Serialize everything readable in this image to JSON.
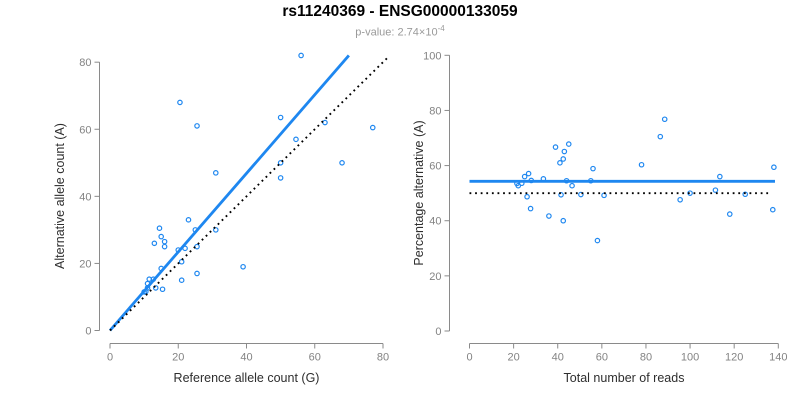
{
  "header": {
    "title": "rs11240369 - ENSG00000133059",
    "pvalue_prefix": "p-value: ",
    "pvalue_mantissa": "2.74×10",
    "pvalue_exponent": "-4"
  },
  "colors": {
    "accent_blue": "#1e87f0",
    "dotted_black": "#000000",
    "axis_gray": "#8a8a8a",
    "tick_label_gray": "#838383",
    "axis_title_color": "#2e2e2e",
    "subtitle_gray": "#9a9a9a"
  },
  "chart_data": [
    {
      "type": "scatter",
      "title": "",
      "xlabel": "Reference allele count (G)",
      "ylabel": "Alternative allele count (A)",
      "xlim": [
        0,
        80
      ],
      "ylim": [
        0,
        80
      ],
      "xticks": [
        0,
        20,
        40,
        60,
        80
      ],
      "yticks": [
        0,
        20,
        40,
        60,
        80
      ],
      "grid": false,
      "legend": "none",
      "points_meaning": "x = reference allele (G) read count, y = alternative allele (A) read count per sample",
      "points": [
        [
          56,
          82
        ],
        [
          20.5,
          68
        ],
        [
          25.5,
          61
        ],
        [
          50,
          63.5
        ],
        [
          63,
          62
        ],
        [
          77,
          60.5
        ],
        [
          54.5,
          57
        ],
        [
          50,
          50
        ],
        [
          68,
          50
        ],
        [
          31,
          47
        ],
        [
          50,
          45.5
        ],
        [
          23,
          33
        ],
        [
          14.5,
          30.5
        ],
        [
          15,
          28
        ],
        [
          13,
          26
        ],
        [
          16,
          26.5
        ],
        [
          16,
          25
        ],
        [
          25,
          30
        ],
        [
          22,
          24.5
        ],
        [
          20,
          24
        ],
        [
          25.5,
          25
        ],
        [
          31,
          30
        ],
        [
          21,
          20.5
        ],
        [
          39,
          19
        ],
        [
          25.5,
          17
        ],
        [
          21,
          15
        ],
        [
          15,
          18.5
        ],
        [
          11.5,
          15.3
        ],
        [
          12.7,
          15.3
        ],
        [
          11,
          12.7
        ],
        [
          13.4,
          12.7
        ],
        [
          15.4,
          12.3
        ],
        [
          10,
          11.5
        ],
        [
          10.5,
          11.6
        ],
        [
          11,
          14
        ]
      ],
      "lines": [
        {
          "name": "fitted-line",
          "style": "solid",
          "x1": 0,
          "y1": 0,
          "x2": 70,
          "y2": 82
        },
        {
          "name": "identity-line",
          "style": "dotted",
          "x1": 0,
          "y1": 0,
          "x2": 81.5,
          "y2": 81.5
        }
      ]
    },
    {
      "type": "scatter",
      "title": "",
      "xlabel": "Total number of reads",
      "ylabel": "Percentage alternative (A)",
      "xlim": [
        0,
        140
      ],
      "ylim": [
        0,
        100
      ],
      "xticks": [
        0,
        20,
        40,
        60,
        80,
        100,
        120,
        140
      ],
      "yticks": [
        0,
        20,
        40,
        60,
        80,
        100
      ],
      "grid": false,
      "legend": "none",
      "points_meaning": "x = total reads (G+A), y = percentage of alternative allele reads per sample",
      "points": [
        [
          138,
          59.4
        ],
        [
          88.5,
          76.8
        ],
        [
          86.5,
          70.5
        ],
        [
          113.5,
          56
        ],
        [
          125,
          49.6
        ],
        [
          137.5,
          44
        ],
        [
          111.5,
          51.1
        ],
        [
          100,
          50
        ],
        [
          118,
          42.4
        ],
        [
          78,
          60.3
        ],
        [
          95.5,
          47.6
        ],
        [
          56,
          58.9
        ],
        [
          45,
          67.8
        ],
        [
          43,
          65.1
        ],
        [
          39,
          66.7
        ],
        [
          42.5,
          62.4
        ],
        [
          41,
          61
        ],
        [
          55,
          54.5
        ],
        [
          46.5,
          52.7
        ],
        [
          44,
          54.5
        ],
        [
          50.5,
          49.5
        ],
        [
          61,
          49.2
        ],
        [
          41.5,
          49.4
        ],
        [
          58,
          32.8
        ],
        [
          42.5,
          40
        ],
        [
          36,
          41.7
        ],
        [
          33.5,
          55.2
        ],
        [
          26.8,
          57.1
        ],
        [
          28,
          54.6
        ],
        [
          23.7,
          53.6
        ],
        [
          26.1,
          48.7
        ],
        [
          27.7,
          44.4
        ],
        [
          21.5,
          53.5
        ],
        [
          22.1,
          52.7
        ],
        [
          25,
          56
        ]
      ],
      "lines": [
        {
          "name": "mean-line",
          "style": "solid",
          "x1": 0,
          "y1": 54.3,
          "x2": 138.5,
          "y2": 54.3
        },
        {
          "name": "fifty-percent-line",
          "style": "dotted",
          "x1": 0,
          "y1": 50,
          "x2": 135.5,
          "y2": 50
        }
      ]
    }
  ]
}
